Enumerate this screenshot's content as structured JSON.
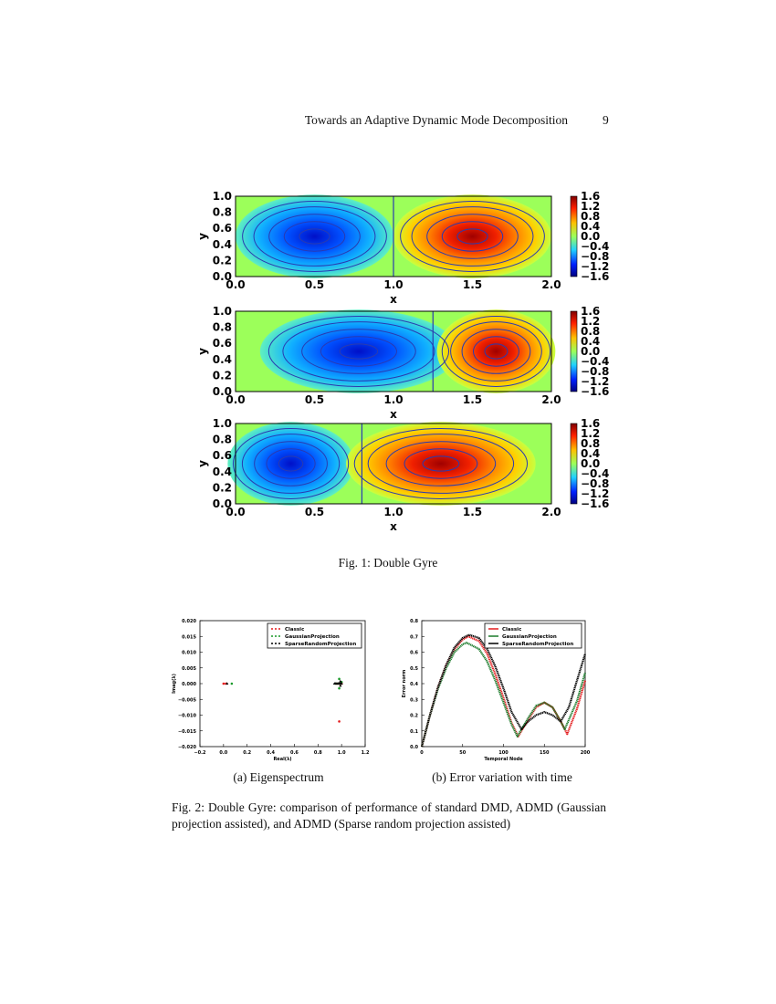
{
  "header": {
    "running_title": "Towards an Adaptive Dynamic Mode Decomposition",
    "page_number": "9"
  },
  "figure1": {
    "caption": "Fig. 1: Double Gyre",
    "panels": [
      {
        "x_ticks": [
          "0.0",
          "0.5",
          "1.0",
          "1.5",
          "2.0"
        ],
        "y_ticks": [
          "1.0",
          "0.8",
          "0.6",
          "0.4",
          "0.2",
          "0.0"
        ],
        "xlabel": "x",
        "ylabel": "y",
        "gyre_blue_center": 0.5,
        "gyre_red_center": 1.5,
        "separatrix": 1.0
      },
      {
        "x_ticks": [
          "0.0",
          "0.5",
          "1.0",
          "1.5",
          "2.0"
        ],
        "y_ticks": [
          "1.0",
          "0.8",
          "0.6",
          "0.4",
          "0.2",
          "0.0"
        ],
        "xlabel": "x",
        "ylabel": "y",
        "gyre_blue_center": 0.78,
        "gyre_red_center": 1.65,
        "separatrix": 1.25
      },
      {
        "x_ticks": [
          "0.0",
          "0.5",
          "1.0",
          "1.5",
          "2.0"
        ],
        "y_ticks": [
          "1.0",
          "0.8",
          "0.6",
          "0.4",
          "0.2",
          "0.0"
        ],
        "xlabel": "x",
        "ylabel": "y",
        "gyre_blue_center": 0.35,
        "gyre_red_center": 1.3,
        "separatrix": 0.8
      }
    ],
    "colorbar_ticks": [
      "1.6",
      "1.2",
      "0.8",
      "0.4",
      "0.0",
      "−0.4",
      "−0.8",
      "−1.2",
      "−1.6"
    ],
    "colors": {
      "low": "#00007f",
      "mid": "#9cff5a",
      "high": "#7f0000",
      "streamline": "#2a3bb0"
    }
  },
  "figure2": {
    "caption": "Fig. 2: Double Gyre: comparison of performance of standard DMD, ADMD (Gaussian projection assisted), and ADMD (Sparse random projection assisted)",
    "subcaption_a": "(a) Eigenspectrum",
    "subcaption_b": "(b) Error variation with time"
  },
  "chart_data": [
    {
      "type": "scatter",
      "xlabel": "Real(λ)",
      "ylabel": "Imag(λ)",
      "xlim": [
        -0.2,
        1.2
      ],
      "ylim": [
        -0.02,
        0.02
      ],
      "x_ticks": [
        "−0.2",
        "0.0",
        "0.2",
        "0.4",
        "0.6",
        "0.8",
        "1.0",
        "1.2"
      ],
      "y_ticks": [
        "0.020",
        "0.015",
        "0.010",
        "0.005",
        "0.000",
        "−0.005",
        "−0.010",
        "−0.015",
        "−0.020"
      ],
      "x_tick_values": [
        -0.2,
        0,
        0.2,
        0.4,
        0.6,
        0.8,
        1.0,
        1.2
      ],
      "y_tick_values": [
        0.02,
        0.015,
        0.01,
        0.005,
        0,
        -0.005,
        -0.01,
        -0.015,
        -0.02
      ],
      "legend": "top-right",
      "series": [
        {
          "name": "Classic",
          "color": "#e31a1c",
          "marker": "circle",
          "points": [
            [
              0.0,
              0
            ],
            [
              0.02,
              0
            ],
            [
              0.96,
              0
            ],
            [
              0.98,
              0
            ],
            [
              1.0,
              0
            ],
            [
              0.98,
              -0.012
            ]
          ]
        },
        {
          "name": "GaussianProjection",
          "color": "#1a9a2a",
          "marker": "circle",
          "points": [
            [
              0.07,
              0
            ],
            [
              0.95,
              0
            ],
            [
              0.97,
              0
            ],
            [
              0.99,
              0
            ],
            [
              0.98,
              0.0015
            ],
            [
              0.98,
              -0.0015
            ],
            [
              1.0,
              0.0005
            ]
          ]
        },
        {
          "name": "SparseRandomProjection",
          "color": "#000000",
          "marker": "triangle",
          "points": [
            [
              0.03,
              0
            ],
            [
              0.94,
              0
            ],
            [
              0.95,
              0
            ],
            [
              0.96,
              0
            ],
            [
              0.97,
              0
            ],
            [
              0.98,
              0
            ],
            [
              0.99,
              0
            ],
            [
              1.0,
              0
            ],
            [
              0.99,
              0.0007
            ],
            [
              0.99,
              -0.0007
            ]
          ]
        }
      ]
    },
    {
      "type": "line",
      "xlabel": "Temporal Node",
      "ylabel": "Error norm",
      "xlim": [
        0,
        200
      ],
      "ylim": [
        0,
        0.8
      ],
      "x_ticks": [
        "0",
        "50",
        "100",
        "150",
        "200"
      ],
      "x_tick_values": [
        0,
        50,
        100,
        150,
        200
      ],
      "y_ticks": [
        "0.8",
        "0.7",
        "0.6",
        "0.5",
        "0.4",
        "0.3",
        "0.2",
        "0.1",
        "0.0"
      ],
      "y_tick_values": [
        0.8,
        0.7,
        0.6,
        0.5,
        0.4,
        0.3,
        0.2,
        0.1,
        0
      ],
      "legend": "top-right",
      "series": [
        {
          "name": "Classic",
          "color": "#e31a1c",
          "x": [
            0,
            10,
            20,
            30,
            40,
            50,
            57,
            70,
            80,
            90,
            100,
            110,
            118,
            130,
            140,
            150,
            160,
            170,
            178,
            190,
            200
          ],
          "y": [
            0,
            0.2,
            0.38,
            0.52,
            0.62,
            0.68,
            0.7,
            0.67,
            0.59,
            0.46,
            0.31,
            0.15,
            0.065,
            0.17,
            0.25,
            0.28,
            0.25,
            0.16,
            0.08,
            0.24,
            0.42
          ]
        },
        {
          "name": "GaussianProjection",
          "color": "#1a7a2a",
          "x": [
            0,
            10,
            20,
            30,
            40,
            50,
            55,
            70,
            80,
            90,
            100,
            110,
            117,
            130,
            140,
            150,
            160,
            170,
            175,
            190,
            200
          ],
          "y": [
            0,
            0.2,
            0.37,
            0.5,
            0.6,
            0.65,
            0.66,
            0.62,
            0.54,
            0.42,
            0.28,
            0.14,
            0.065,
            0.18,
            0.26,
            0.28,
            0.25,
            0.16,
            0.11,
            0.29,
            0.47
          ]
        },
        {
          "name": "SparseRandomProjection",
          "color": "#000000",
          "x": [
            0,
            10,
            20,
            30,
            40,
            50,
            58,
            70,
            80,
            90,
            100,
            110,
            122,
            130,
            140,
            150,
            160,
            170,
            180,
            190,
            200
          ],
          "y": [
            0,
            0.2,
            0.38,
            0.52,
            0.63,
            0.69,
            0.71,
            0.69,
            0.62,
            0.51,
            0.37,
            0.22,
            0.11,
            0.16,
            0.2,
            0.22,
            0.2,
            0.16,
            0.25,
            0.42,
            0.59
          ]
        }
      ]
    }
  ]
}
